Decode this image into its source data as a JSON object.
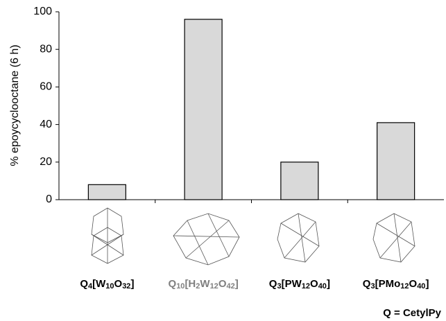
{
  "chart_data": {
    "type": "bar",
    "y_label": "% epoycyclooctane (6 h)",
    "categories": [
      "Q4[W10O32]",
      "Q10[H2W12O42]",
      "Q3[PW12O40]",
      "Q3[PMo12O40]"
    ],
    "category_colors": [
      "#000000",
      "#808080",
      "#000000",
      "#000000"
    ],
    "values": [
      8,
      96,
      20,
      41
    ],
    "color": "#d9d9d9",
    "ylim": [
      0,
      100
    ],
    "yticks": [
      0,
      20,
      40,
      60,
      80,
      100
    ],
    "grid": false,
    "note": "Q = CetylPy"
  }
}
